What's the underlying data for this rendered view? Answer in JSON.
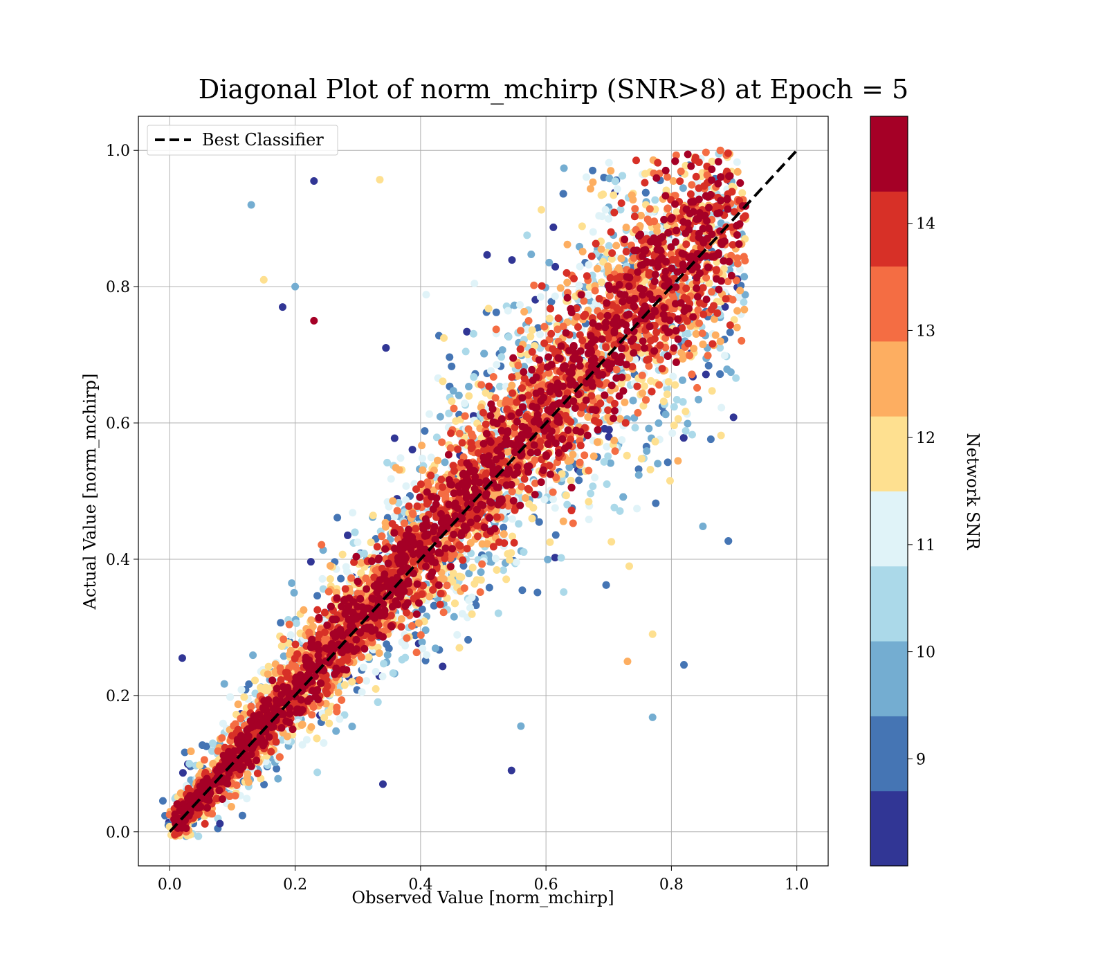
{
  "chart_data": {
    "type": "scatter",
    "title": "Diagonal Plot of norm_mchirp (SNR>8) at Epoch = 5",
    "xlabel": "Observed Value [norm_mchirp]",
    "ylabel": "Actual Value [norm_mchirp]",
    "xlim": [
      -0.05,
      1.05
    ],
    "ylim": [
      -0.05,
      1.05
    ],
    "xticks": [
      "0.0",
      "0.2",
      "0.4",
      "0.6",
      "0.8",
      "1.0"
    ],
    "yticks": [
      "0.0",
      "0.2",
      "0.4",
      "0.6",
      "0.8",
      "1.0"
    ],
    "grid": true,
    "legend": {
      "placement": "top-left",
      "entries": [
        "Best Classifier"
      ]
    },
    "reference_line": {
      "name": "Best Classifier",
      "style": "dashed",
      "color": "#000000",
      "x": [
        0,
        1
      ],
      "y": [
        0,
        1
      ]
    },
    "colorbar": {
      "label": "Network SNR",
      "range": [
        8,
        15
      ],
      "ticks": [
        "9",
        "10",
        "11",
        "12",
        "13",
        "14"
      ],
      "colors": [
        "#313695",
        "#4575b4",
        "#74add1",
        "#abd9e9",
        "#e0f3f8",
        "#ffffbf",
        "#fee090",
        "#fdae61",
        "#f46d43",
        "#d73027",
        "#a50026"
      ]
    },
    "series": [
      {
        "color_by": "Network SNR",
        "x_range": [
          0.0,
          0.92
        ],
        "y_range": [
          0.0,
          1.0
        ],
        "description": "dense cloud of points along y = x; high SNR points tightly clustered near diagonal, low SNR points spread widely",
        "outliers": [
          {
            "x": 0.23,
            "y": 0.955,
            "snr": 8.2
          },
          {
            "x": 0.13,
            "y": 0.92,
            "snr": 9.5
          },
          {
            "x": 0.335,
            "y": 0.957,
            "snr": 12.0
          },
          {
            "x": 0.15,
            "y": 0.81,
            "snr": 12.0
          },
          {
            "x": 0.2,
            "y": 0.8,
            "snr": 9.5
          },
          {
            "x": 0.23,
            "y": 0.75,
            "snr": 14.5
          },
          {
            "x": 0.18,
            "y": 0.77,
            "snr": 8.3
          },
          {
            "x": 0.82,
            "y": 0.245,
            "snr": 9.2
          },
          {
            "x": 0.77,
            "y": 0.168,
            "snr": 9.8
          },
          {
            "x": 0.545,
            "y": 0.09,
            "snr": 8.2
          },
          {
            "x": 0.34,
            "y": 0.07,
            "snr": 8.3
          },
          {
            "x": 0.08,
            "y": 0.012,
            "snr": 8.3
          },
          {
            "x": 0.02,
            "y": 0.255,
            "snr": 8.3
          },
          {
            "x": 0.73,
            "y": 0.25,
            "snr": 12.8
          },
          {
            "x": 0.77,
            "y": 0.29,
            "snr": 12.0
          },
          {
            "x": 0.56,
            "y": 0.155,
            "snr": 9.5
          }
        ]
      }
    ]
  }
}
